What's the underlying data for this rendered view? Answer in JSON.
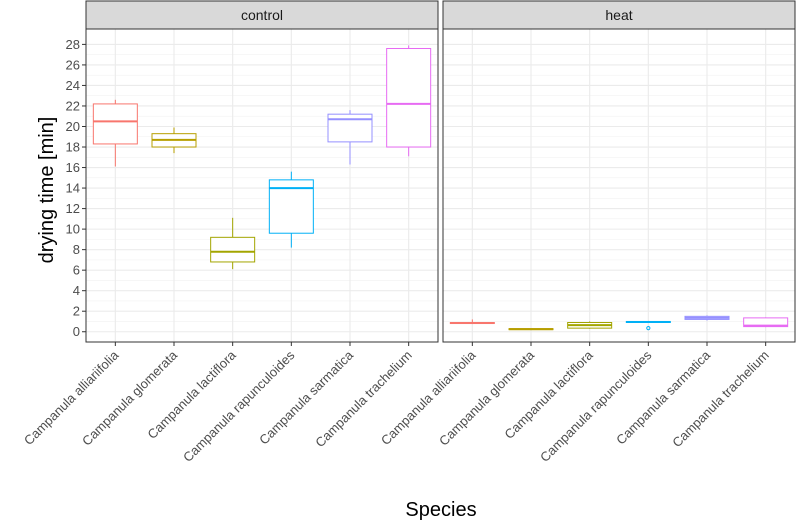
{
  "chart_data": {
    "type": "boxplot",
    "xlabel": "Species",
    "ylabel": "drying time [min]",
    "ylim": [
      -1.0,
      29.5
    ],
    "yticks": [
      0,
      2,
      4,
      6,
      8,
      10,
      12,
      14,
      16,
      18,
      20,
      22,
      24,
      26,
      28
    ],
    "ytick_labels": [
      "0",
      "2",
      "4",
      "6",
      "8",
      "10",
      "12",
      "14",
      "16",
      "18",
      "20",
      "22",
      "24",
      "26",
      "28"
    ],
    "categories": [
      "Campanula alliariifolia",
      "Campanula glomerata",
      "Campanula lactiflora",
      "Campanula rapunculoides",
      "Campanula sarmatica",
      "Campanula trachelium"
    ],
    "colors": [
      "#F8766D",
      "#B79F00",
      "#A3A500",
      "#00B0F6",
      "#9590FF",
      "#E76BF3"
    ],
    "facets": [
      {
        "label": "control",
        "boxes": [
          {
            "lower_whisker": 16.1,
            "q1": 18.3,
            "median": 20.5,
            "q3": 22.2,
            "upper_whisker": 22.6,
            "outliers": []
          },
          {
            "lower_whisker": 17.4,
            "q1": 18.0,
            "median": 18.7,
            "q3": 19.3,
            "upper_whisker": 19.9,
            "outliers": []
          },
          {
            "lower_whisker": 6.1,
            "q1": 6.8,
            "median": 7.8,
            "q3": 9.2,
            "upper_whisker": 11.1,
            "outliers": []
          },
          {
            "lower_whisker": 8.2,
            "q1": 9.6,
            "median": 14.0,
            "q3": 14.8,
            "upper_whisker": 15.6,
            "outliers": []
          },
          {
            "lower_whisker": 16.3,
            "q1": 18.5,
            "median": 20.7,
            "q3": 21.2,
            "upper_whisker": 21.6,
            "outliers": []
          },
          {
            "lower_whisker": 17.1,
            "q1": 18.0,
            "median": 22.2,
            "q3": 27.6,
            "upper_whisker": 27.9,
            "outliers": []
          }
        ]
      },
      {
        "label": "heat",
        "boxes": [
          {
            "lower_whisker": 0.75,
            "q1": 0.8,
            "median": 0.85,
            "q3": 0.9,
            "upper_whisker": 1.2,
            "outliers": []
          },
          {
            "lower_whisker": 0.2,
            "q1": 0.22,
            "median": 0.25,
            "q3": 0.3,
            "upper_whisker": 0.32,
            "outliers": []
          },
          {
            "lower_whisker": 0.3,
            "q1": 0.35,
            "median": 0.65,
            "q3": 0.9,
            "upper_whisker": 1.0,
            "outliers": []
          },
          {
            "lower_whisker": 0.85,
            "q1": 0.9,
            "median": 0.95,
            "q3": 1.0,
            "upper_whisker": 1.05,
            "outliers": [
              0.35
            ]
          },
          {
            "lower_whisker": 1.1,
            "q1": 1.2,
            "median": 1.35,
            "q3": 1.5,
            "upper_whisker": 1.6,
            "outliers": []
          },
          {
            "lower_whisker": 0.45,
            "q1": 0.5,
            "median": 0.6,
            "q3": 1.35,
            "upper_whisker": 1.4,
            "outliers": []
          }
        ]
      }
    ]
  }
}
